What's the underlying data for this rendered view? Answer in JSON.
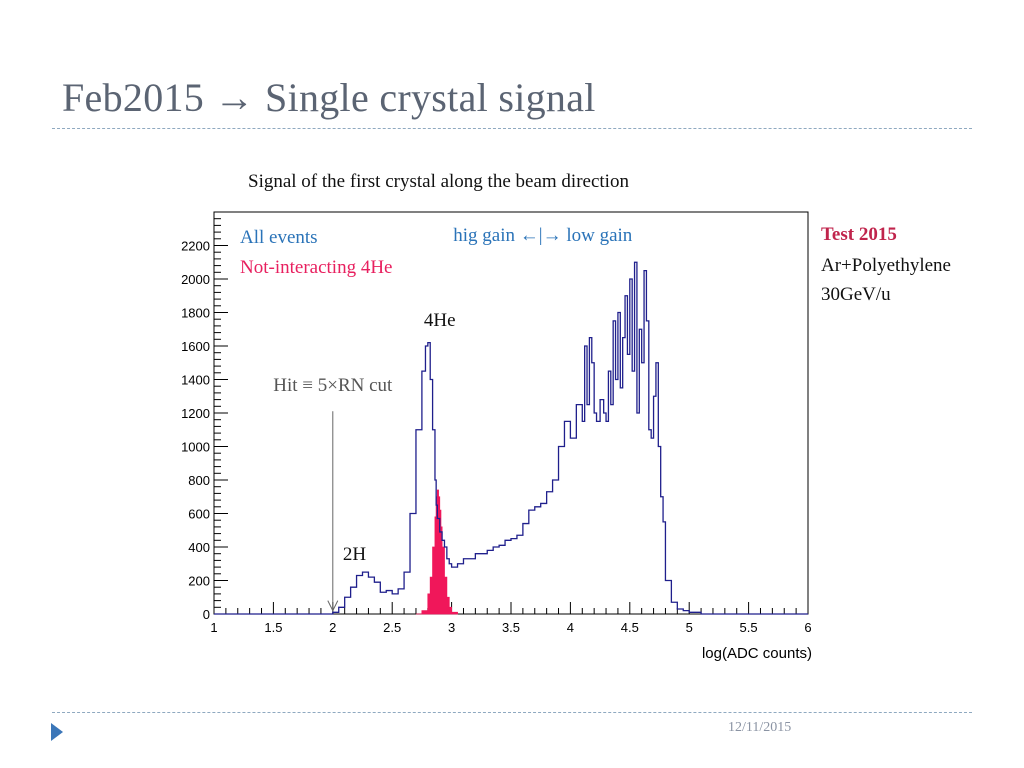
{
  "slide": {
    "title": "Feb2015 → Single crystal signal",
    "date": "12/11/2015"
  },
  "notes": {
    "test": "Test 2015",
    "target": "Ar+Polyethylene",
    "energy": "30GeV/u"
  },
  "colors": {
    "all_events": "#1f1f8c",
    "not_interacting": "#f0175a",
    "legend_all": "#2a73b8",
    "legend_4he": "#e8205f",
    "test_label": "#c0244c"
  },
  "chart_data": {
    "type": "histogram",
    "title": "Signal of the first crystal along the beam direction",
    "xlabel": "log(ADC counts)",
    "ylabel": "",
    "xlim": [
      1,
      6
    ],
    "ylim": [
      0,
      2400
    ],
    "x_ticks": [
      1,
      1.5,
      2,
      2.5,
      3,
      3.5,
      4,
      4.5,
      5,
      5.5,
      6
    ],
    "x_tick_labels": [
      "1",
      "1.5",
      "2",
      "2.5",
      "3",
      "3.5",
      "4",
      "4.5",
      "5",
      "5.5",
      "6"
    ],
    "y_ticks": [
      0,
      200,
      400,
      600,
      800,
      1000,
      1200,
      1400,
      1600,
      1800,
      2000,
      2200
    ],
    "y_tick_labels": [
      "0",
      "200",
      "400",
      "600",
      "800",
      "1000",
      "1200",
      "1400",
      "1600",
      "1800",
      "2000",
      "2200"
    ],
    "legend": [
      "All events",
      "Not-interacting 4He"
    ],
    "legend_position": "top-left",
    "series": [
      {
        "name": "All events",
        "x": [
          1.0,
          1.5,
          1.9,
          2.0,
          2.05,
          2.1,
          2.15,
          2.2,
          2.25,
          2.3,
          2.35,
          2.4,
          2.45,
          2.5,
          2.55,
          2.6,
          2.65,
          2.7,
          2.75,
          2.78,
          2.8,
          2.82,
          2.84,
          2.86,
          2.87,
          2.88,
          2.9,
          2.92,
          2.94,
          2.96,
          2.98,
          3.0,
          3.05,
          3.1,
          3.15,
          3.2,
          3.25,
          3.3,
          3.35,
          3.4,
          3.45,
          3.5,
          3.55,
          3.6,
          3.65,
          3.7,
          3.75,
          3.8,
          3.85,
          3.9,
          3.95,
          4.0,
          4.05,
          4.1,
          4.12,
          4.14,
          4.16,
          4.18,
          4.2,
          4.22,
          4.25,
          4.28,
          4.3,
          4.32,
          4.34,
          4.36,
          4.38,
          4.4,
          4.42,
          4.44,
          4.46,
          4.48,
          4.5,
          4.52,
          4.54,
          4.56,
          4.58,
          4.6,
          4.62,
          4.64,
          4.66,
          4.68,
          4.7,
          4.72,
          4.74,
          4.76,
          4.78,
          4.8,
          4.85,
          4.9,
          4.95,
          5.0,
          5.1,
          5.5,
          6.0
        ],
        "y": [
          0,
          0,
          0,
          10,
          40,
          100,
          160,
          230,
          250,
          220,
          190,
          130,
          140,
          120,
          150,
          250,
          600,
          1100,
          1450,
          1600,
          1620,
          1400,
          1100,
          800,
          650,
          570,
          490,
          440,
          400,
          330,
          300,
          280,
          300,
          330,
          330,
          360,
          360,
          380,
          400,
          410,
          440,
          450,
          470,
          540,
          620,
          640,
          660,
          730,
          800,
          1000,
          1150,
          1050,
          1250,
          1150,
          1600,
          1250,
          1650,
          1500,
          1200,
          1150,
          1280,
          1200,
          1150,
          1450,
          1250,
          1750,
          1400,
          1800,
          1350,
          1650,
          1900,
          1550,
          2000,
          1450,
          2100,
          1200,
          1700,
          1500,
          2050,
          1750,
          1100,
          1050,
          1300,
          1500,
          1000,
          700,
          550,
          200,
          70,
          30,
          20,
          10,
          0,
          0,
          0
        ]
      },
      {
        "name": "Not-interacting 4He",
        "x": [
          2.7,
          2.75,
          2.8,
          2.82,
          2.84,
          2.86,
          2.87,
          2.88,
          2.89,
          2.9,
          2.91,
          2.92,
          2.94,
          2.96,
          2.98,
          3.0,
          3.05
        ],
        "y": [
          0,
          20,
          120,
          220,
          400,
          580,
          700,
          740,
          700,
          620,
          520,
          400,
          220,
          100,
          40,
          10,
          0
        ]
      }
    ],
    "annotations": [
      {
        "text": "4He",
        "x": 2.9,
        "y": 1720
      },
      {
        "text": "2H",
        "x": 2.25,
        "y": 340
      },
      {
        "text": "Hit ≡ 5×RN cut",
        "x": 2.0,
        "y": 1330
      },
      {
        "text": "hig gain ←|→ low gain",
        "x": 4.5,
        "y": 2240
      }
    ]
  }
}
